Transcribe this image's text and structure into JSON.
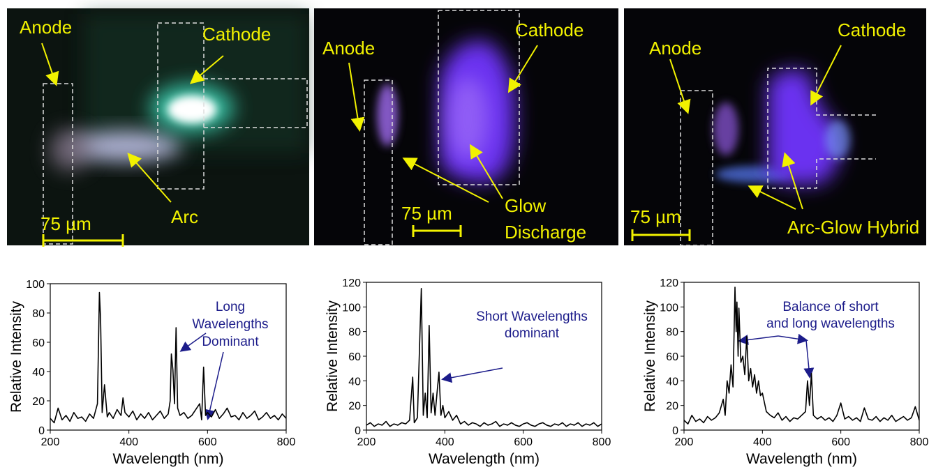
{
  "panels": [
    {
      "anode": "Anode",
      "cathode": "Cathode",
      "discharge": [
        "Arc"
      ],
      "scale": "75 µm"
    },
    {
      "anode": "Anode",
      "cathode": "Cathode",
      "discharge": [
        "Glow",
        "Discharge"
      ],
      "scale": "75 µm"
    },
    {
      "anode": "Anode",
      "cathode": "Cathode",
      "discharge": [
        "Arc-Glow Hybrid"
      ],
      "scale": "75 µm"
    }
  ],
  "chart_data": [
    {
      "type": "line",
      "xlabel": "Wavelength (nm)",
      "ylabel": "Relative Intensity",
      "color": "#000000",
      "annotation": [
        "Long",
        "Wavelengths",
        "Dominant"
      ],
      "xlim": [
        200,
        800
      ],
      "xticks": [
        200,
        400,
        600,
        800
      ],
      "ylim": [
        0,
        100
      ],
      "yticks": [
        0,
        20,
        40,
        60,
        80,
        100
      ],
      "x": [
        200,
        210,
        220,
        230,
        240,
        250,
        260,
        270,
        280,
        290,
        300,
        310,
        320,
        325,
        328,
        332,
        338,
        345,
        350,
        360,
        370,
        380,
        385,
        390,
        400,
        410,
        420,
        430,
        440,
        450,
        460,
        470,
        480,
        490,
        500,
        505,
        508,
        512,
        516,
        520,
        524,
        530,
        540,
        550,
        560,
        570,
        580,
        585,
        590,
        595,
        600,
        610,
        620,
        630,
        640,
        650,
        660,
        670,
        680,
        690,
        700,
        710,
        720,
        730,
        740,
        750,
        760,
        770,
        780,
        790,
        800
      ],
      "values": [
        8,
        5,
        15,
        7,
        10,
        6,
        12,
        8,
        9,
        6,
        11,
        8,
        18,
        94,
        76,
        12,
        31,
        9,
        12,
        8,
        14,
        10,
        22,
        12,
        9,
        13,
        7,
        11,
        8,
        12,
        7,
        10,
        13,
        8,
        11,
        20,
        52,
        41,
        18,
        70,
        15,
        10,
        12,
        8,
        10,
        14,
        18,
        7,
        43,
        10,
        12,
        9,
        14,
        8,
        11,
        15,
        9,
        10,
        7,
        12,
        8,
        10,
        13,
        7,
        9,
        12,
        8,
        10,
        7,
        11,
        8
      ]
    },
    {
      "type": "line",
      "xlabel": "Wavelength (nm)",
      "ylabel": "Relative Intensity",
      "color": "#000000",
      "annotation": [
        "Short Wavelengths",
        "dominant"
      ],
      "xlim": [
        200,
        800
      ],
      "xticks": [
        200,
        400,
        600,
        800
      ],
      "ylim": [
        0,
        120
      ],
      "yticks": [
        0,
        20,
        40,
        60,
        80,
        100,
        120
      ],
      "x": [
        200,
        210,
        220,
        230,
        240,
        250,
        260,
        270,
        280,
        290,
        300,
        310,
        318,
        322,
        330,
        340,
        345,
        350,
        355,
        360,
        365,
        370,
        375,
        380,
        385,
        390,
        395,
        400,
        410,
        420,
        430,
        440,
        450,
        460,
        470,
        480,
        490,
        500,
        510,
        520,
        530,
        540,
        550,
        560,
        570,
        580,
        590,
        600,
        610,
        620,
        630,
        640,
        650,
        660,
        670,
        680,
        690,
        700,
        710,
        720,
        730,
        740,
        750,
        760,
        770,
        780,
        790,
        800
      ],
      "values": [
        4,
        6,
        3,
        5,
        4,
        7,
        3,
        5,
        4,
        6,
        5,
        8,
        43,
        6,
        10,
        115,
        12,
        30,
        10,
        85,
        14,
        30,
        12,
        30,
        47,
        12,
        20,
        10,
        15,
        8,
        12,
        5,
        7,
        4,
        6,
        5,
        3,
        6,
        4,
        5,
        7,
        3,
        5,
        4,
        6,
        4,
        3,
        5,
        6,
        4,
        3,
        5,
        6,
        4,
        3,
        5,
        4,
        6,
        3,
        5,
        4,
        6,
        3,
        5,
        4,
        6,
        3,
        5
      ]
    },
    {
      "type": "line",
      "xlabel": "Wavelength (nm)",
      "ylabel": "Relative Intensity",
      "color": "#000000",
      "annotation": [
        "Balance of short",
        "and long wavelengths"
      ],
      "xlim": [
        200,
        800
      ],
      "xticks": [
        200,
        400,
        600,
        800
      ],
      "ylim": [
        0,
        120
      ],
      "yticks": [
        0,
        20,
        40,
        60,
        80,
        100,
        120
      ],
      "x": [
        200,
        210,
        220,
        230,
        240,
        250,
        260,
        270,
        280,
        290,
        300,
        305,
        310,
        315,
        320,
        325,
        330,
        333,
        335,
        338,
        340,
        345,
        350,
        355,
        360,
        365,
        370,
        375,
        380,
        385,
        390,
        395,
        400,
        410,
        420,
        430,
        440,
        450,
        460,
        470,
        480,
        490,
        500,
        510,
        515,
        520,
        525,
        530,
        540,
        550,
        560,
        570,
        580,
        590,
        600,
        610,
        620,
        630,
        640,
        650,
        660,
        670,
        680,
        690,
        700,
        710,
        720,
        730,
        740,
        750,
        760,
        770,
        780,
        790,
        800
      ],
      "values": [
        8,
        5,
        12,
        7,
        9,
        6,
        11,
        8,
        10,
        14,
        25,
        12,
        40,
        30,
        53,
        35,
        116,
        80,
        104,
        60,
        99,
        55,
        60,
        45,
        76,
        40,
        50,
        35,
        45,
        30,
        40,
        28,
        30,
        15,
        12,
        10,
        14,
        8,
        11,
        7,
        10,
        9,
        12,
        15,
        40,
        20,
        46,
        12,
        9,
        11,
        8,
        10,
        7,
        12,
        22,
        9,
        11,
        8,
        10,
        7,
        18,
        9,
        8,
        11,
        7,
        10,
        8,
        12,
        7,
        9,
        11,
        8,
        10,
        19,
        8
      ]
    }
  ]
}
